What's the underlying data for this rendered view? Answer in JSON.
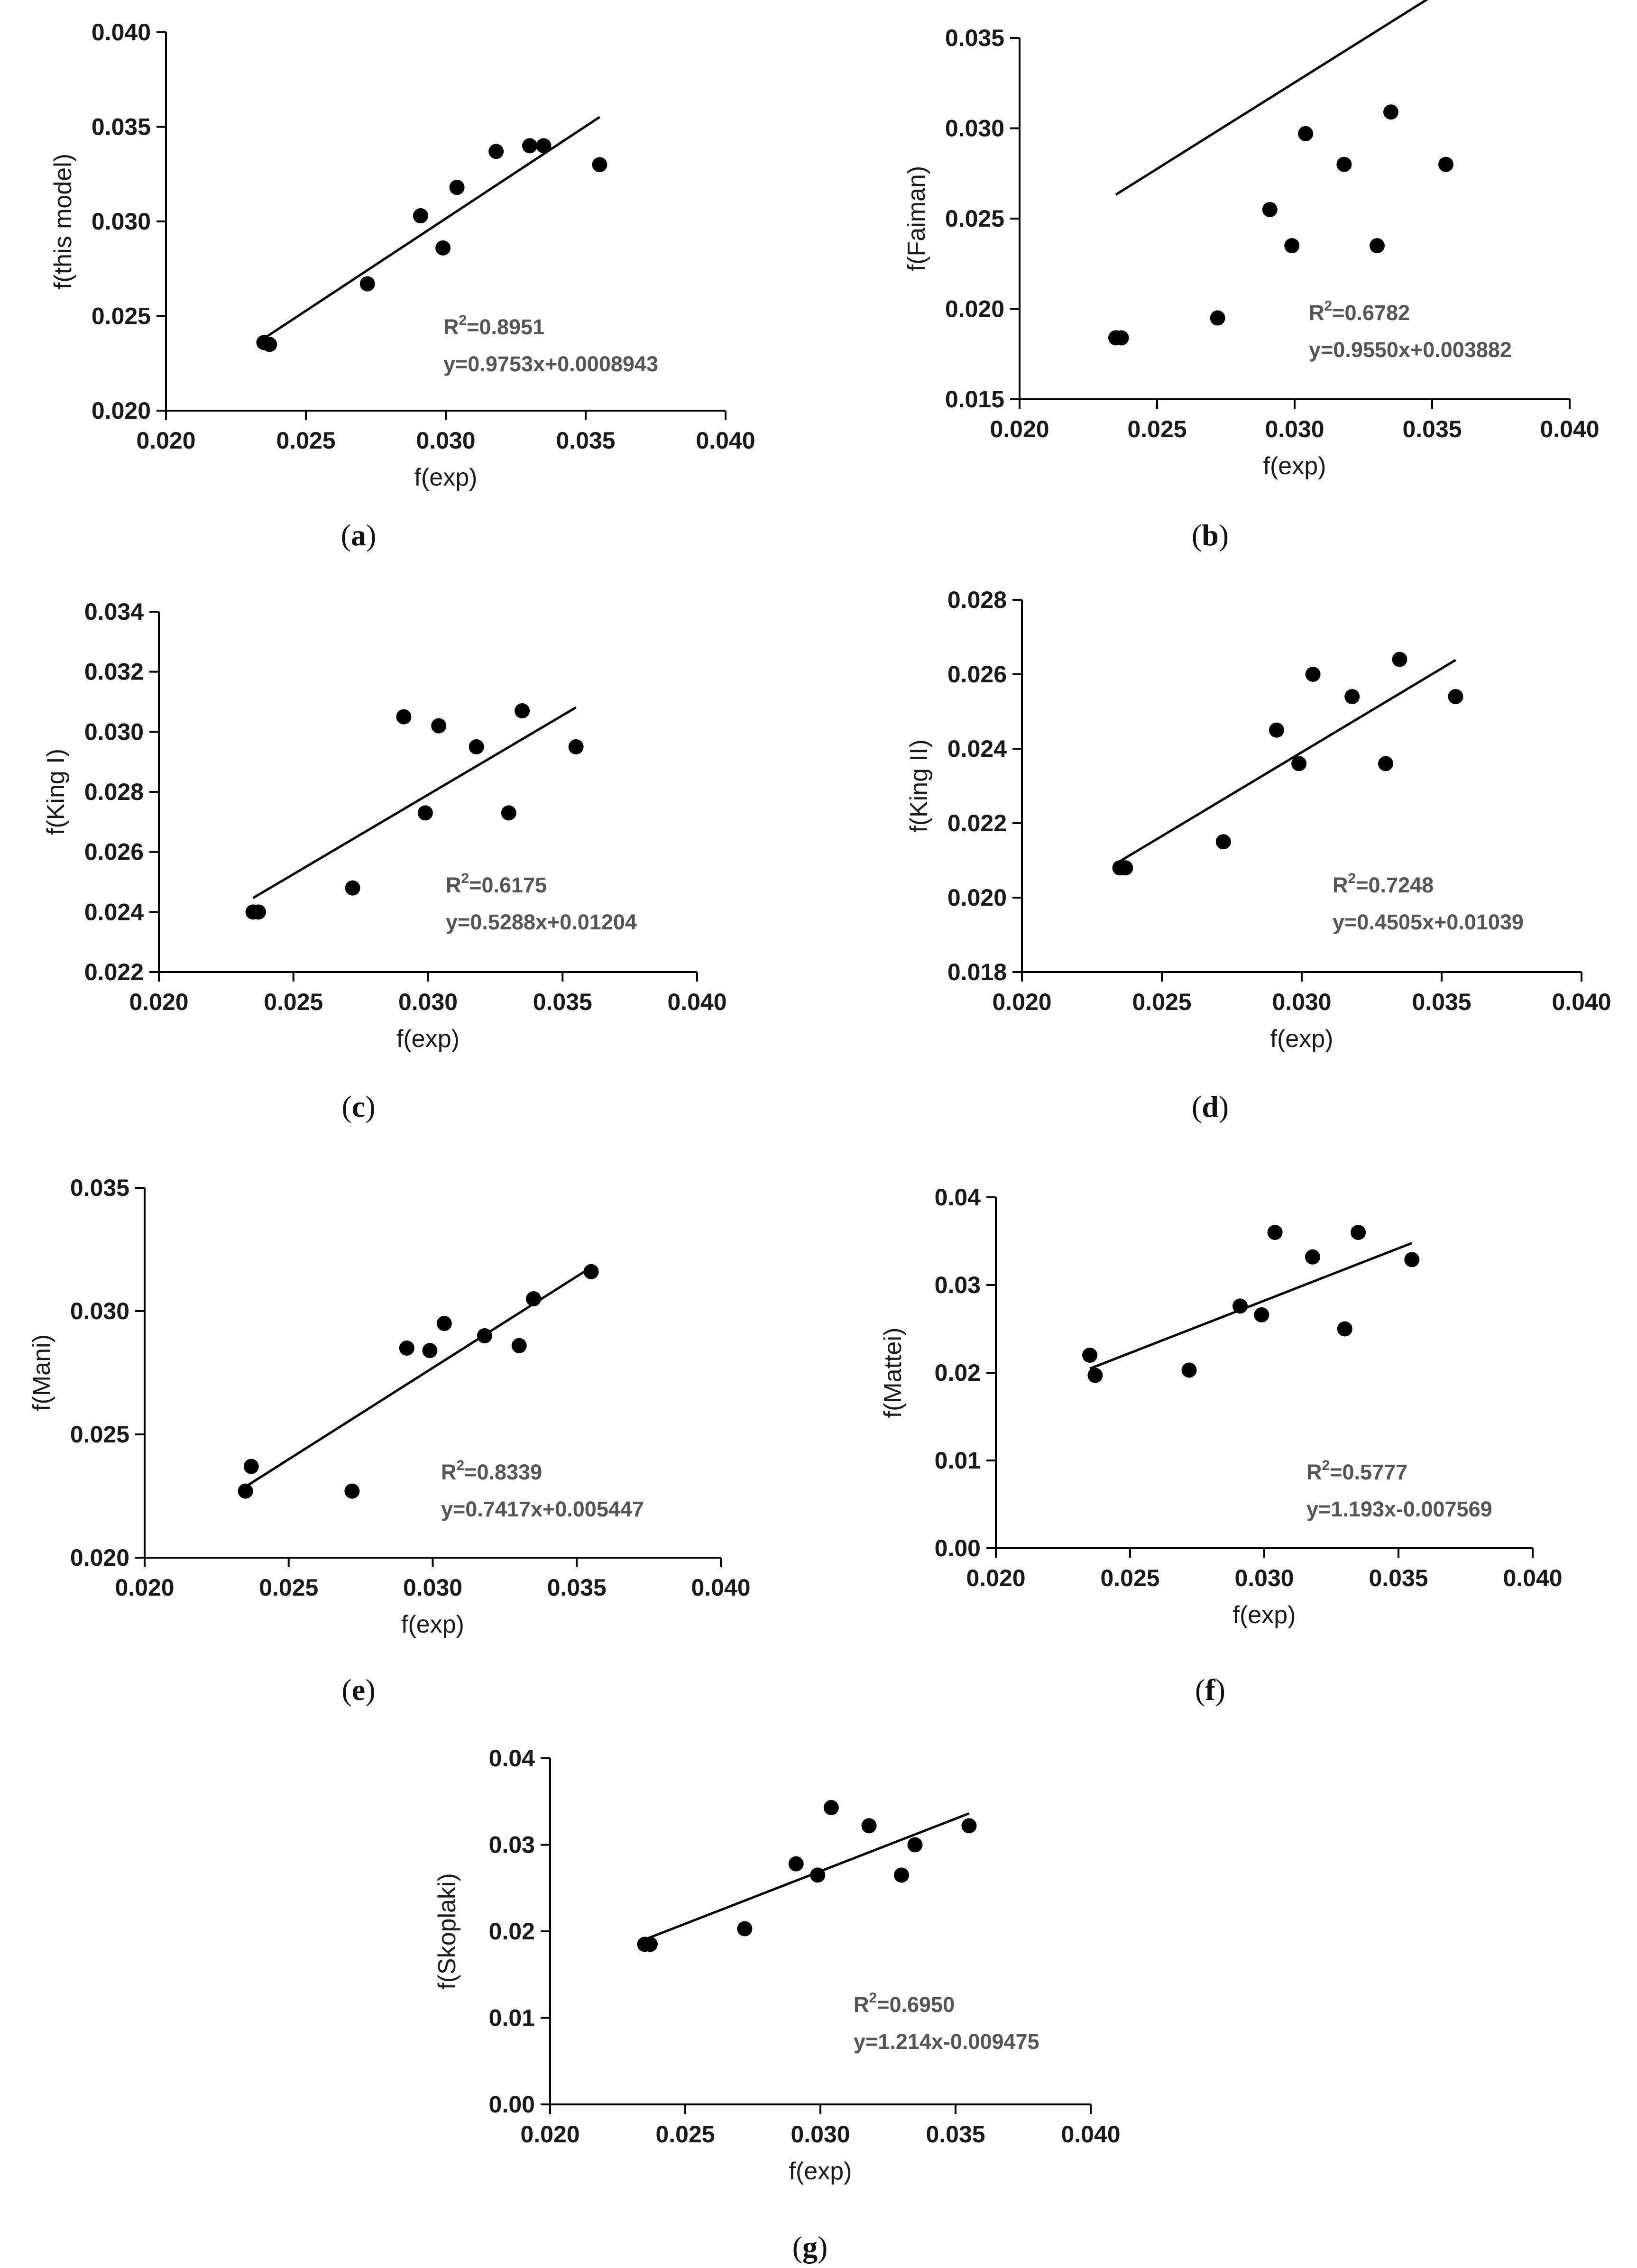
{
  "figure": {
    "title": ""
  },
  "chart_data": [
    {
      "type": "scatter",
      "caption": "a",
      "title": "",
      "xlabel": "f(exp)",
      "ylabel": "f(this model)",
      "xlim": [
        0.02,
        0.04
      ],
      "ylim": [
        0.02,
        0.04
      ],
      "xticks": [
        "0.020",
        "0.025",
        "0.030",
        "0.035",
        "0.040"
      ],
      "yticks": [
        "0.020",
        "0.025",
        "0.030",
        "0.035",
        "0.040"
      ],
      "x": [
        0.0235,
        0.0237,
        0.0272,
        0.0291,
        0.0299,
        0.0304,
        0.0318,
        0.033,
        0.0335,
        0.0355
      ],
      "y": [
        0.0236,
        0.0235,
        0.0267,
        0.0303,
        0.0286,
        0.0318,
        0.0337,
        0.034,
        0.034,
        0.033
      ],
      "fit": {
        "slope": 0.9753,
        "intercept": 0.0008943,
        "x_range": [
          0.0235,
          0.0355
        ]
      },
      "annotation": {
        "r2_prefix": "R",
        "r2_sup": "2",
        "r2_value": "=0.8951",
        "equation": "y=0.9753x+0.0008943"
      },
      "grid": false
    },
    {
      "type": "scatter",
      "caption": "b",
      "title": "",
      "xlabel": "f(exp)",
      "ylabel": "f(Faiman)",
      "xlim": [
        0.02,
        0.04
      ],
      "ylim": [
        0.015,
        0.035
      ],
      "xticks": [
        "0.020",
        "0.025",
        "0.030",
        "0.035",
        "0.040"
      ],
      "yticks": [
        "0.015",
        "0.020",
        "0.025",
        "0.030",
        "0.035"
      ],
      "x": [
        0.0235,
        0.0237,
        0.0272,
        0.0291,
        0.0299,
        0.0304,
        0.0318,
        0.033,
        0.0335,
        0.0355
      ],
      "y": [
        0.0184,
        0.0184,
        0.0195,
        0.0255,
        0.0235,
        0.0297,
        0.028,
        0.0235,
        0.0309,
        0.028
      ],
      "fit": {
        "slope": 0.955,
        "intercept": 0.003882,
        "x_range": [
          0.0235,
          0.0355
        ]
      },
      "annotation": {
        "r2_prefix": "R",
        "r2_sup": "2",
        "r2_value": "=0.6782",
        "equation": "y=0.9550x+0.003882"
      },
      "grid": false
    },
    {
      "type": "scatter",
      "caption": "c",
      "title": "",
      "xlabel": "f(exp)",
      "ylabel": "f(King I)",
      "xlim": [
        0.02,
        0.04
      ],
      "ylim": [
        0.022,
        0.034
      ],
      "xticks": [
        "0.020",
        "0.025",
        "0.030",
        "0.035",
        "0.040"
      ],
      "yticks": [
        "0.022",
        "0.024",
        "0.026",
        "0.028",
        "0.030",
        "0.032",
        "0.034"
      ],
      "x": [
        0.0235,
        0.0237,
        0.0272,
        0.0291,
        0.0299,
        0.0304,
        0.0318,
        0.033,
        0.0335,
        0.0355
      ],
      "y": [
        0.024,
        0.024,
        0.0248,
        0.0305,
        0.0273,
        0.0302,
        0.0295,
        0.0273,
        0.0307,
        0.0295
      ],
      "fit": {
        "slope": 0.5288,
        "intercept": 0.01204,
        "x_range": [
          0.0235,
          0.0355
        ]
      },
      "annotation": {
        "r2_prefix": "R",
        "r2_sup": "2",
        "r2_value": "=0.6175",
        "equation": "y=0.5288x+0.01204"
      },
      "grid": false
    },
    {
      "type": "scatter",
      "caption": "d",
      "title": "",
      "xlabel": "f(exp)",
      "ylabel": "f(King II)",
      "xlim": [
        0.02,
        0.04
      ],
      "ylim": [
        0.018,
        0.028
      ],
      "xticks": [
        "0.020",
        "0.025",
        "0.030",
        "0.035",
        "0.040"
      ],
      "yticks": [
        "0.018",
        "0.020",
        "0.022",
        "0.024",
        "0.026",
        "0.028"
      ],
      "x": [
        0.0235,
        0.0237,
        0.0272,
        0.0291,
        0.0299,
        0.0304,
        0.0318,
        0.033,
        0.0335,
        0.0355
      ],
      "y": [
        0.0208,
        0.0208,
        0.0215,
        0.0245,
        0.0236,
        0.026,
        0.0254,
        0.0236,
        0.0264,
        0.0254
      ],
      "fit": {
        "slope": 0.4505,
        "intercept": 0.01039,
        "x_range": [
          0.0235,
          0.0355
        ]
      },
      "annotation": {
        "r2_prefix": "R",
        "r2_sup": "2",
        "r2_value": "=0.7248",
        "equation": "y=0.4505x+0.01039"
      },
      "grid": false
    },
    {
      "type": "scatter",
      "caption": "e",
      "title": "",
      "xlabel": "f(exp)",
      "ylabel": "f(Mani)",
      "xlim": [
        0.02,
        0.04
      ],
      "ylim": [
        0.02,
        0.035
      ],
      "xticks": [
        "0.020",
        "0.025",
        "0.030",
        "0.035",
        "0.040"
      ],
      "yticks": [
        "0.020",
        "0.025",
        "0.030",
        "0.035"
      ],
      "x": [
        0.0235,
        0.0237,
        0.0272,
        0.0291,
        0.0299,
        0.0304,
        0.0318,
        0.033,
        0.0335,
        0.0355
      ],
      "y": [
        0.0227,
        0.0237,
        0.0227,
        0.0285,
        0.0284,
        0.0295,
        0.029,
        0.0286,
        0.0305,
        0.0316
      ],
      "fit": {
        "slope": 0.7417,
        "intercept": 0.005447,
        "x_range": [
          0.0235,
          0.0355
        ]
      },
      "annotation": {
        "r2_prefix": "R",
        "r2_sup": "2",
        "r2_value": "=0.8339",
        "equation": "y=0.7417x+0.005447"
      },
      "grid": false
    },
    {
      "type": "scatter",
      "caption": "f",
      "title": "",
      "xlabel": "f(exp)",
      "ylabel": "f(Mattei)",
      "xlim": [
        0.02,
        0.04
      ],
      "ylim": [
        0.0,
        0.04
      ],
      "xticks": [
        "0.020",
        "0.025",
        "0.030",
        "0.035",
        "0.040"
      ],
      "yticks": [
        "0.00",
        "0.01",
        "0.02",
        "0.03",
        "0.04"
      ],
      "x": [
        0.0235,
        0.0237,
        0.0272,
        0.0291,
        0.0299,
        0.0304,
        0.0318,
        0.033,
        0.0335,
        0.0355
      ],
      "y": [
        0.022,
        0.0197,
        0.0203,
        0.0276,
        0.0266,
        0.036,
        0.0332,
        0.025,
        0.036,
        0.0329
      ],
      "fit": {
        "slope": 1.193,
        "intercept": -0.007569,
        "x_range": [
          0.0235,
          0.0355
        ]
      },
      "annotation": {
        "r2_prefix": "R",
        "r2_sup": "2",
        "r2_value": "=0.5777",
        "equation": "y=1.193x-0.007569"
      },
      "grid": false
    },
    {
      "type": "scatter",
      "caption": "g",
      "title": "",
      "xlabel": "f(exp)",
      "ylabel": "f(Skoplaki)",
      "xlim": [
        0.02,
        0.04
      ],
      "ylim": [
        0.0,
        0.04
      ],
      "xticks": [
        "0.020",
        "0.025",
        "0.030",
        "0.035",
        "0.040"
      ],
      "yticks": [
        "0.00",
        "0.01",
        "0.02",
        "0.03",
        "0.04"
      ],
      "x": [
        0.0235,
        0.0237,
        0.0272,
        0.0291,
        0.0299,
        0.0304,
        0.0318,
        0.033,
        0.0335,
        0.0355
      ],
      "y": [
        0.0185,
        0.0185,
        0.0203,
        0.0278,
        0.0265,
        0.0343,
        0.0322,
        0.0265,
        0.03,
        0.0322
      ],
      "fit": {
        "slope": 1.214,
        "intercept": -0.009475,
        "x_range": [
          0.0235,
          0.0355
        ]
      },
      "annotation": {
        "r2_prefix": "R",
        "r2_sup": "2",
        "r2_value": "=0.6950",
        "equation": "y=1.214x-0.009475"
      },
      "grid": false
    }
  ]
}
